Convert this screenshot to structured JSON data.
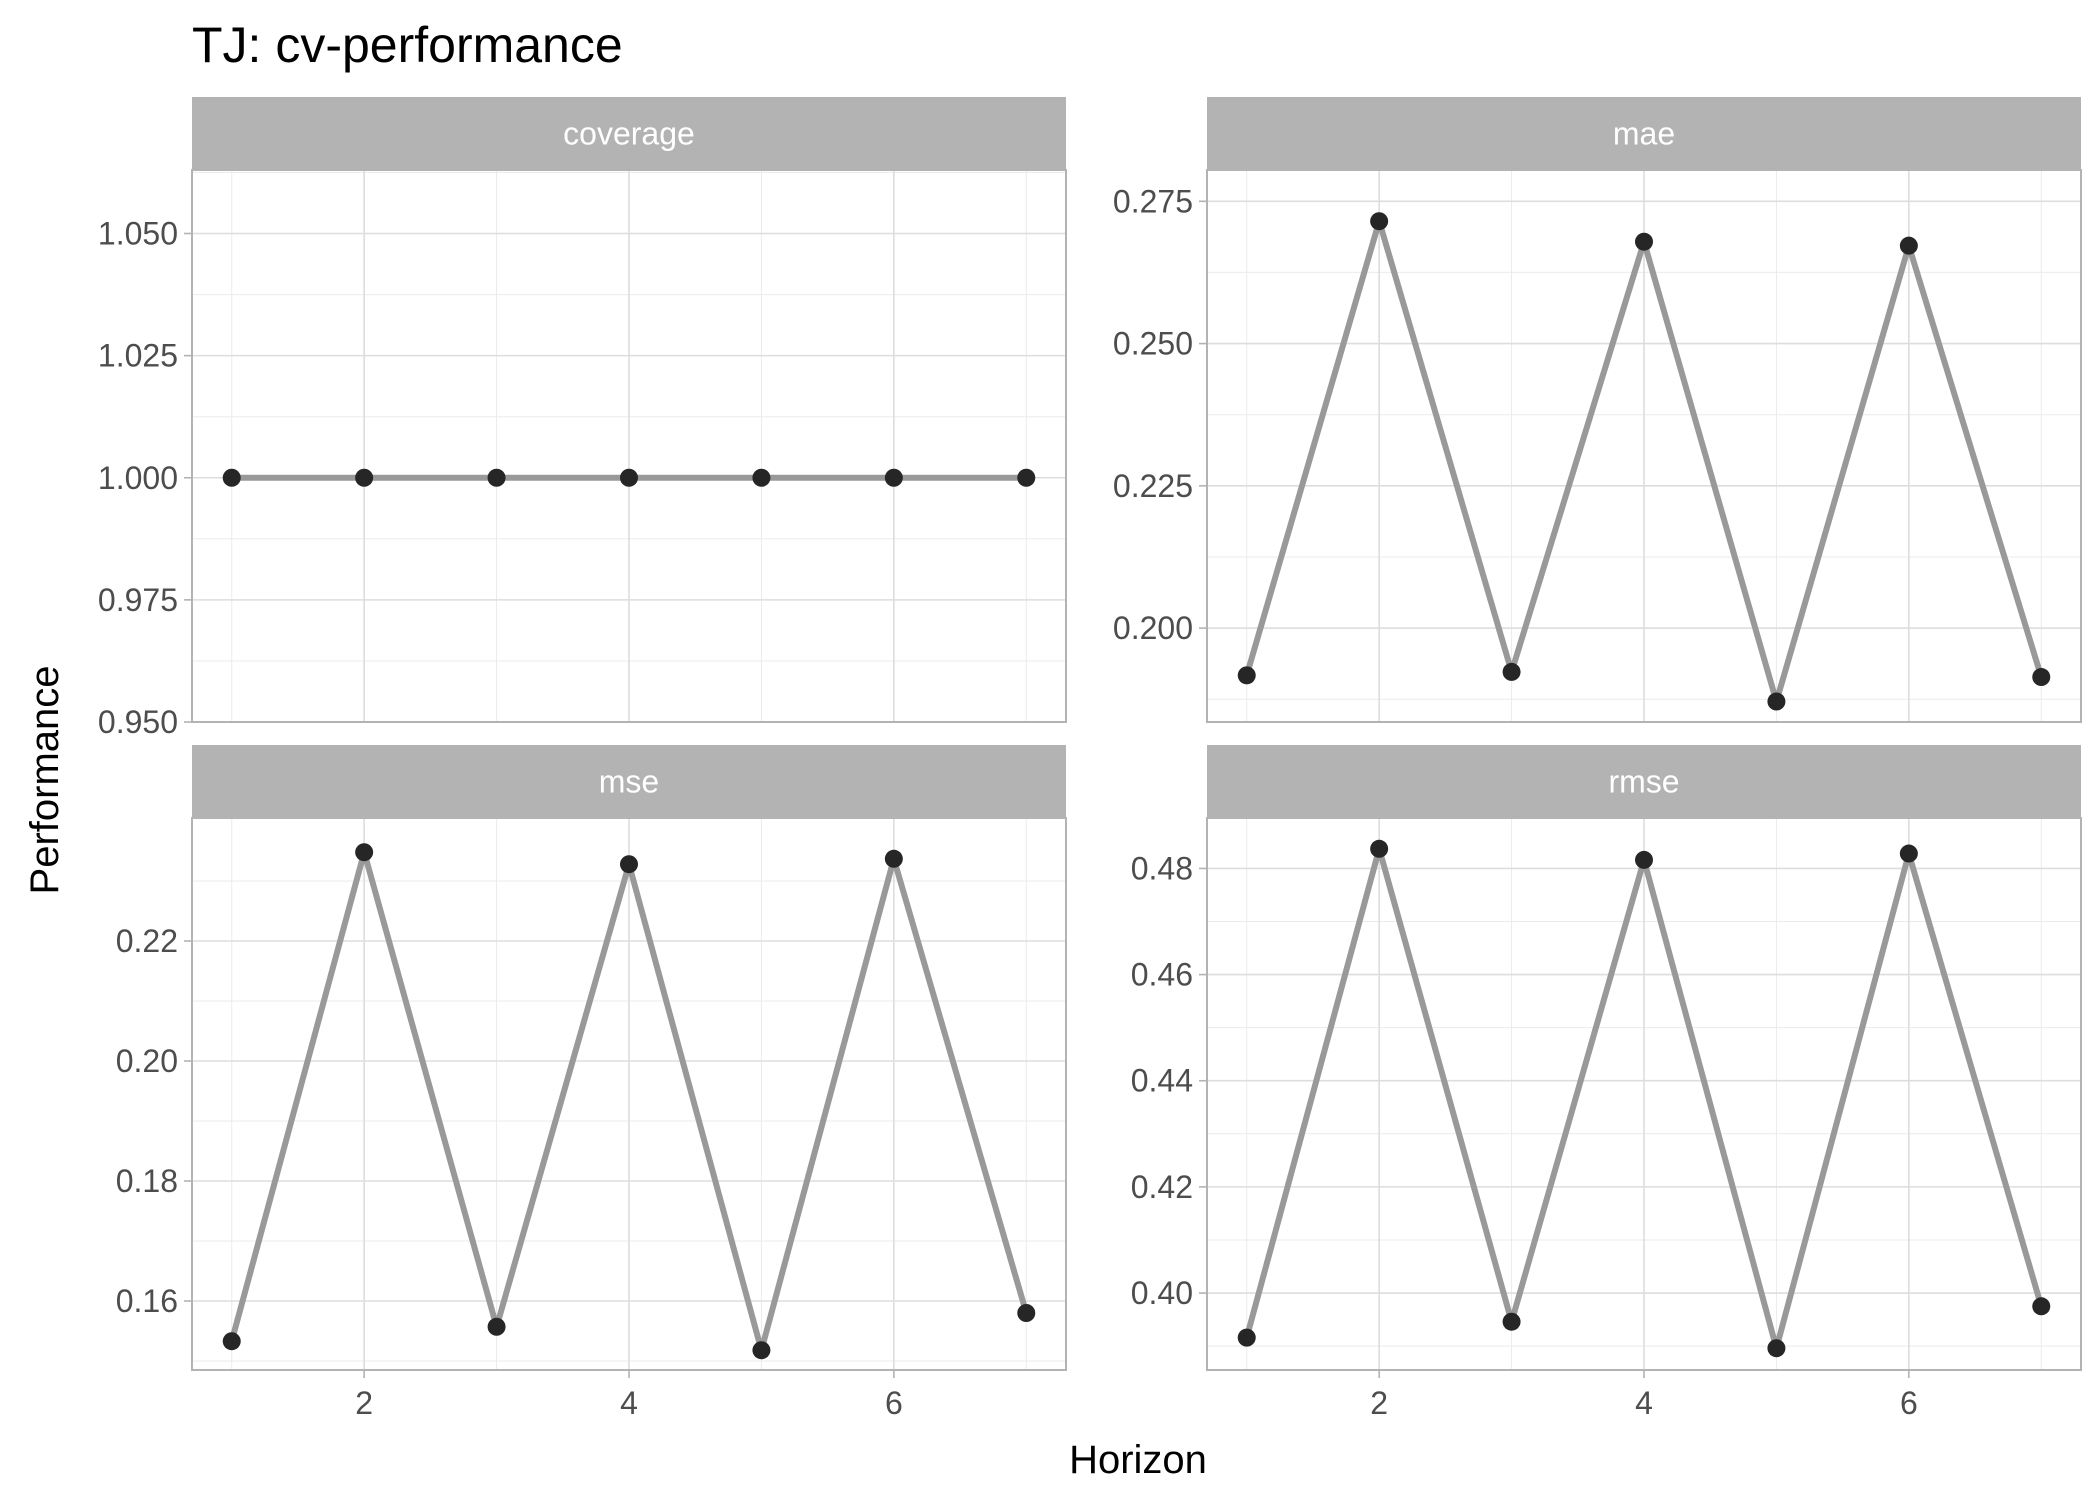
{
  "chart_data": {
    "type": "line",
    "title": "TJ: cv-performance",
    "xlabel": "Horizon",
    "ylabel": "Performance",
    "layout": "facet-grid-2x2",
    "grid": true,
    "legend": "none",
    "x_ticks": [
      2,
      4,
      6
    ],
    "xlim": [
      0.7,
      7.3
    ],
    "colors": {
      "line": "#999999",
      "point": "#262626",
      "strip": "#b3b3b3",
      "panel_border": "#b3b3b3",
      "grid": "#dddddd"
    },
    "panels": [
      {
        "strip_label": "coverage",
        "x": [
          1,
          2,
          3,
          4,
          5,
          6,
          7
        ],
        "y": [
          1.0,
          1.0,
          1.0,
          1.0,
          1.0,
          1.0,
          1.0
        ],
        "ylim": [
          0.95,
          1.063
        ],
        "y_ticks": [
          "0.950",
          "0.975",
          "1.000",
          "1.025",
          "1.050"
        ]
      },
      {
        "strip_label": "mae",
        "x": [
          1,
          2,
          3,
          4,
          5,
          6,
          7
        ],
        "y": [
          0.1917,
          0.2715,
          0.1923,
          0.2679,
          0.1871,
          0.2672,
          0.1914
        ],
        "ylim": [
          0.1835,
          0.2805
        ],
        "y_ticks": [
          "0.200",
          "0.225",
          "0.250",
          "0.275"
        ]
      },
      {
        "strip_label": "mse",
        "x": [
          1,
          2,
          3,
          4,
          5,
          6,
          7
        ],
        "y": [
          0.1533,
          0.2348,
          0.1557,
          0.2328,
          0.1518,
          0.2337,
          0.158
        ],
        "ylim": [
          0.1485,
          0.2405
        ],
        "y_ticks": [
          "0.16",
          "0.18",
          "0.20",
          "0.22"
        ]
      },
      {
        "strip_label": "rmse",
        "x": [
          1,
          2,
          3,
          4,
          5,
          6,
          7
        ],
        "y": [
          0.3916,
          0.4837,
          0.3946,
          0.4816,
          0.3896,
          0.4828,
          0.3975
        ],
        "ylim": [
          0.3855,
          0.4895
        ],
        "y_ticks": [
          "0.40",
          "0.42",
          "0.44",
          "0.46",
          "0.48"
        ]
      }
    ]
  }
}
